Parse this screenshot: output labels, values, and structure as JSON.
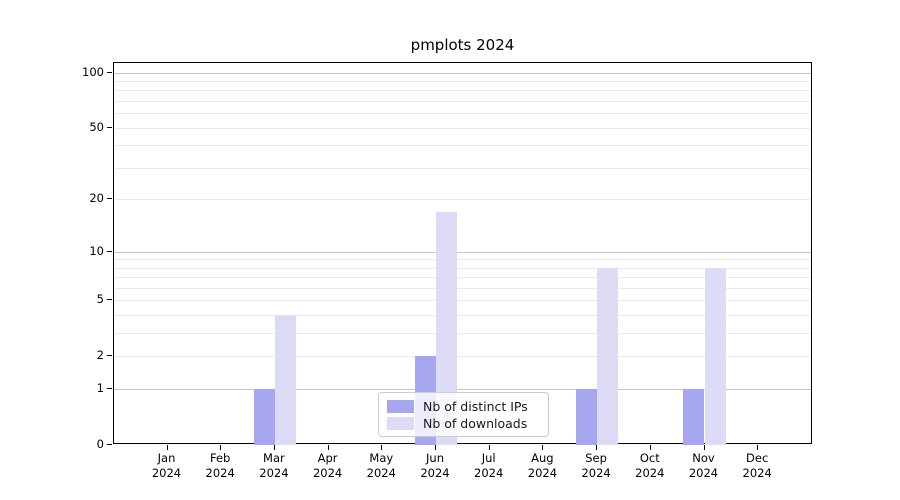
{
  "title": "pmplots 2024",
  "chart_data": {
    "type": "bar",
    "title": "pmplots 2024",
    "xlabel": "",
    "ylabel": "",
    "yscale": "log1p",
    "ylim": [
      0,
      111
    ],
    "grid": "horizontal, major and minor",
    "legend_position": "lower center",
    "categories": [
      {
        "month": "Jan",
        "year": "2024"
      },
      {
        "month": "Feb",
        "year": "2024"
      },
      {
        "month": "Mar",
        "year": "2024"
      },
      {
        "month": "Apr",
        "year": "2024"
      },
      {
        "month": "May",
        "year": "2024"
      },
      {
        "month": "Jun",
        "year": "2024"
      },
      {
        "month": "Jul",
        "year": "2024"
      },
      {
        "month": "Aug",
        "year": "2024"
      },
      {
        "month": "Sep",
        "year": "2024"
      },
      {
        "month": "Oct",
        "year": "2024"
      },
      {
        "month": "Nov",
        "year": "2024"
      },
      {
        "month": "Dec",
        "year": "2024"
      }
    ],
    "series": [
      {
        "name": "Nb of distinct IPs",
        "color": "#a7a7f0",
        "values": [
          0,
          0,
          1,
          0,
          0,
          2,
          0,
          0,
          1,
          0,
          1,
          0
        ]
      },
      {
        "name": "Nb of downloads",
        "color": "#dcdcf7",
        "values": [
          0,
          0,
          4,
          0,
          0,
          17,
          0,
          0,
          8,
          0,
          8,
          0
        ]
      }
    ],
    "yaxis": {
      "labeled_ticks": [
        {
          "value": 0,
          "label": "0"
        },
        {
          "value": 1,
          "label": "1"
        },
        {
          "value": 2,
          "label": "2"
        },
        {
          "value": 5,
          "label": "5"
        },
        {
          "value": 10,
          "label": "10"
        },
        {
          "value": 20,
          "label": "20"
        },
        {
          "value": 50,
          "label": "50"
        },
        {
          "value": 100,
          "label": "100"
        }
      ],
      "major_gridlines": [
        1,
        10,
        100
      ],
      "minor_gridlines": [
        2,
        3,
        4,
        5,
        6,
        7,
        8,
        9,
        20,
        30,
        40,
        50,
        60,
        70,
        80,
        90
      ]
    }
  }
}
